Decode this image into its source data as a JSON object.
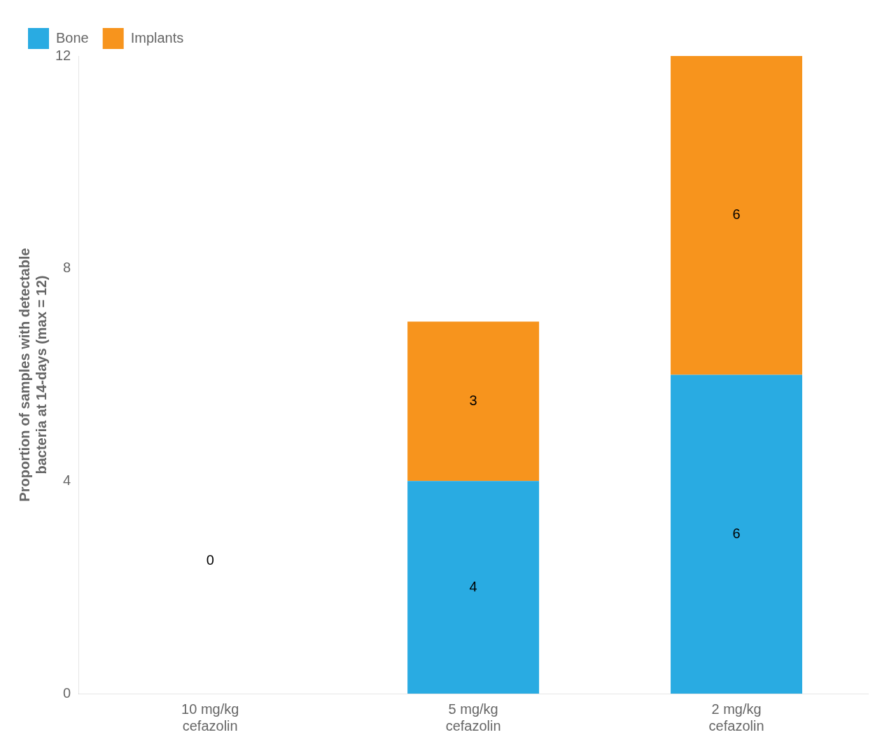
{
  "chart_data": {
    "type": "bar",
    "stacked": true,
    "categories": [
      "10 mg/kg\ncefazolin",
      "5 mg/kg\ncefazolin",
      "2 mg/kg\ncefazolin"
    ],
    "series": [
      {
        "name": "Bone",
        "color": "#29ABE2",
        "values": [
          0,
          4,
          6
        ]
      },
      {
        "name": "Implants",
        "color": "#F7941D",
        "values": [
          0,
          3,
          6
        ]
      }
    ],
    "ylabel": "Proportion of samples with detectable\nbacteria at 14-days (max = 12)",
    "ylim": [
      0,
      12
    ],
    "yticks": [
      0,
      4,
      8,
      12
    ],
    "data_labels": true,
    "annotations": [
      {
        "text": "0",
        "x": "10 mg/kg\ncefazolin",
        "y": 2.5
      }
    ],
    "legend": "upper left",
    "grid": false
  }
}
